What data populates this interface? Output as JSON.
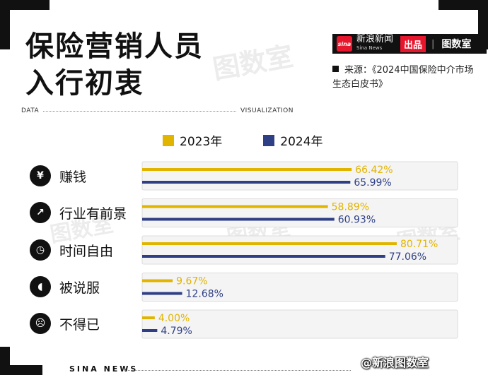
{
  "header": {
    "title_line1": "保险营销人员",
    "title_line2": "入行初衷",
    "watermark": "图数室",
    "brand": {
      "sina_logo": "sina",
      "sina_name": "新浪新闻",
      "sina_name_en": "Sina News",
      "chupin": "出品",
      "divider": "|",
      "tushushi": "图数室"
    },
    "source": "来源：《2024中国保险中介市场生态白皮书》"
  },
  "data_line": {
    "left": "DATA",
    "right": "VISUALIZATION"
  },
  "icons": {
    "赚钱": "money-bag-icon",
    "行业有前景": "rising-chart-icon",
    "时间自由": "clock-icon",
    "被说服": "head-speaking-icon",
    "不得已": "sad-face-icon"
  },
  "colors": {
    "series_2023": "#e1b400",
    "series_2024": "#2f3f85",
    "track": "#f4f4f4"
  },
  "chart_data": {
    "type": "bar",
    "orientation": "horizontal",
    "categories": [
      "赚钱",
      "行业有前景",
      "时间自由",
      "被说服",
      "不得已"
    ],
    "series": [
      {
        "name": "2023年",
        "values": [
          66.42,
          58.89,
          80.71,
          9.67,
          4.0
        ],
        "labels": [
          "66.42%",
          "58.89%",
          "80.71%",
          "9.67%",
          "4.00%"
        ]
      },
      {
        "name": "2024年",
        "values": [
          65.99,
          60.93,
          77.06,
          12.68,
          4.79
        ],
        "labels": [
          "65.99%",
          "60.93%",
          "77.06%",
          "12.68%",
          "4.79%"
        ]
      }
    ],
    "xlim": [
      0,
      100
    ],
    "legend_position": "top"
  },
  "footer": {
    "label": "SINA NEWS",
    "credit": "@新浪图数室"
  }
}
